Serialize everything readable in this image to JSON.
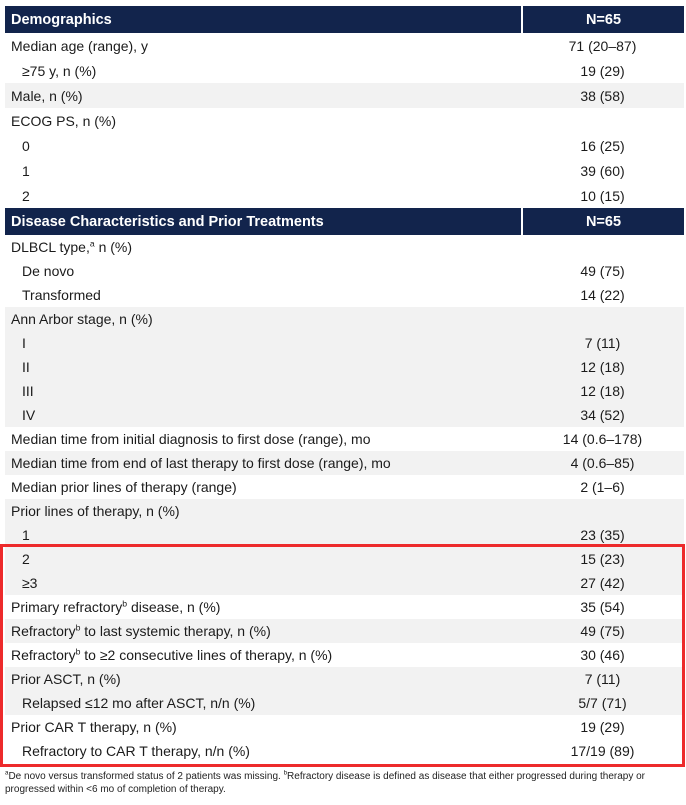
{
  "colors": {
    "header_background": "#12244c",
    "header_text": "#ffffff",
    "shaded_row_background": "#f2f2f2",
    "highlight_box_border": "#ed2a2b",
    "body_text": "#1b1b1b"
  },
  "table": {
    "sections": [
      {
        "header": {
          "label": "Demographics",
          "value": "N=65"
        },
        "rows": [
          {
            "label": "Median age (range), y",
            "value": "71 (20–87)",
            "indent": 0,
            "shaded": false
          },
          {
            "label": "≥75 y, n (%)",
            "value": "19 (29)",
            "indent": 1,
            "shaded": false
          },
          {
            "label": "Male, n (%)",
            "value": "38 (58)",
            "indent": 0,
            "shaded": true
          },
          {
            "label": "ECOG PS, n (%)",
            "value": "",
            "indent": 0,
            "shaded": false
          },
          {
            "label": "0",
            "value": "16 (25)",
            "indent": 1,
            "shaded": false
          },
          {
            "label": "1",
            "value": "39 (60)",
            "indent": 1,
            "shaded": false
          },
          {
            "label": "2",
            "value": "10 (15)",
            "indent": 1,
            "shaded": false
          }
        ]
      },
      {
        "header": {
          "label": "Disease Characteristics and Prior Treatments",
          "value": "N=65"
        },
        "rows": [
          {
            "label": "DLBCL type,^a n (%)",
            "value": "",
            "indent": 0,
            "shaded": false
          },
          {
            "label": "De novo",
            "value": "49 (75)",
            "indent": 1,
            "shaded": false
          },
          {
            "label": "Transformed",
            "value": "14 (22)",
            "indent": 1,
            "shaded": false
          },
          {
            "label": "Ann Arbor stage, n (%)",
            "value": "",
            "indent": 0,
            "shaded": true
          },
          {
            "label": "I",
            "value": "7 (11)",
            "indent": 1,
            "shaded": true
          },
          {
            "label": "II",
            "value": "12 (18)",
            "indent": 1,
            "shaded": true
          },
          {
            "label": "III",
            "value": "12 (18)",
            "indent": 1,
            "shaded": true
          },
          {
            "label": "IV",
            "value": "34 (52)",
            "indent": 1,
            "shaded": true
          },
          {
            "label": "Median time from initial diagnosis to first dose (range), mo",
            "value": "14 (0.6–178)",
            "indent": 0,
            "shaded": false
          },
          {
            "label": "Median time from end of last therapy to first dose (range), mo",
            "value": "4 (0.6–85)",
            "indent": 0,
            "shaded": true
          },
          {
            "label": "Median prior lines of therapy (range)",
            "value": "2 (1–6)",
            "indent": 0,
            "shaded": false
          },
          {
            "label": "Prior lines of therapy, n (%)",
            "value": "",
            "indent": 0,
            "shaded": true
          },
          {
            "label": "1",
            "value": "23 (35)",
            "indent": 1,
            "shaded": true
          },
          {
            "label": "2",
            "value": "15 (23)",
            "indent": 1,
            "shaded": true
          },
          {
            "label": "≥3",
            "value": "27 (42)",
            "indent": 1,
            "shaded": true
          },
          {
            "label": "Primary refractory^b disease, n (%)",
            "value": "35 (54)",
            "indent": 0,
            "shaded": false
          },
          {
            "label": "Refractory^b to last systemic therapy, n (%)",
            "value": "49 (75)",
            "indent": 0,
            "shaded": true
          },
          {
            "label": "Refractory^b to ≥2 consecutive lines of therapy, n (%)",
            "value": "30 (46)",
            "indent": 0,
            "shaded": false
          },
          {
            "label": "Prior ASCT, n (%)",
            "value": "7 (11)",
            "indent": 0,
            "shaded": true
          },
          {
            "label": "Relapsed ≤12 mo after ASCT, n/n (%)",
            "value": "5/7 (71)",
            "indent": 1,
            "shaded": true
          },
          {
            "label": "Prior CAR T therapy, n (%)",
            "value": "19 (29)",
            "indent": 0,
            "shaded": false
          },
          {
            "label": "Refractory to CAR T therapy, n/n (%)",
            "value": "17/19 (89)",
            "indent": 1,
            "shaded": false
          }
        ]
      }
    ]
  },
  "highlight_box": {
    "first_row_label": "2",
    "last_row_label": "Refractory to CAR T therapy, n/n (%)"
  },
  "footnote": "^aDe novo versus transformed status of 2 patients was missing. ^bRefractory disease is defined as disease that either progressed during therapy or progressed within <6 mo of completion of therapy."
}
